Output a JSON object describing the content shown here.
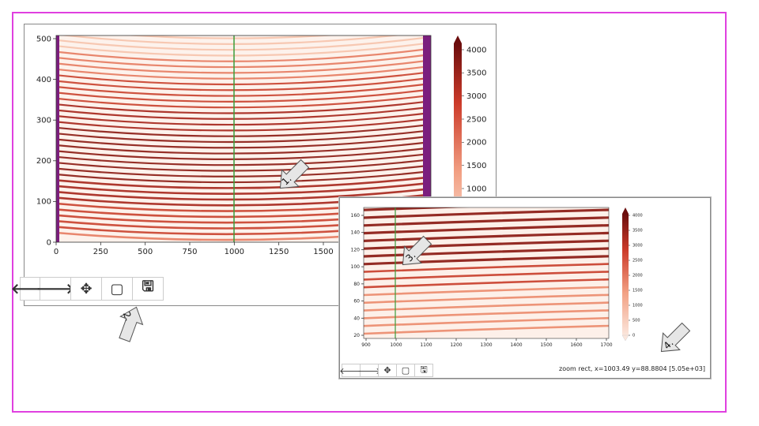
{
  "main_plot": {
    "y_ticks": [
      "0",
      "100",
      "200",
      "300",
      "400",
      "500"
    ],
    "x_ticks": [
      "0",
      "250",
      "500",
      "750",
      "1000",
      "1250",
      "1500"
    ],
    "colorbar_ticks": [
      "1000",
      "1500",
      "2000",
      "2500",
      "3000",
      "3500",
      "4000"
    ],
    "toolbar": {
      "back": "🡐",
      "forward": "🡒",
      "pan": "✥",
      "zoom": "▢",
      "save": "🖫"
    },
    "annotations": [
      "1.",
      "2."
    ]
  },
  "zoom_plot": {
    "y_ticks": [
      "20",
      "40",
      "60",
      "80",
      "100",
      "120",
      "140",
      "160"
    ],
    "x_ticks": [
      "900",
      "1000",
      "1100",
      "1200",
      "1300",
      "1400",
      "1500",
      "1600",
      "1700"
    ],
    "colorbar_ticks": [
      "0",
      "500",
      "1000",
      "1500",
      "2000",
      "2500",
      "3000",
      "3500",
      "4000"
    ],
    "toolbar": {
      "back": "🡐",
      "forward": "🡒",
      "pan": "✥",
      "zoom": "▢",
      "save": "🖫"
    },
    "status_text": "zoom rect, x=1003.49 y=88.8804 [5.05e+03]",
    "annotations": [
      "3.",
      "4."
    ]
  },
  "colors": {
    "frame": "#e040e0",
    "cursor_line": "#3a9d3a",
    "edge_band": "#7b1e7e",
    "fringe_dark": "#8b1a12",
    "fringe_light": "#fde9df"
  }
}
